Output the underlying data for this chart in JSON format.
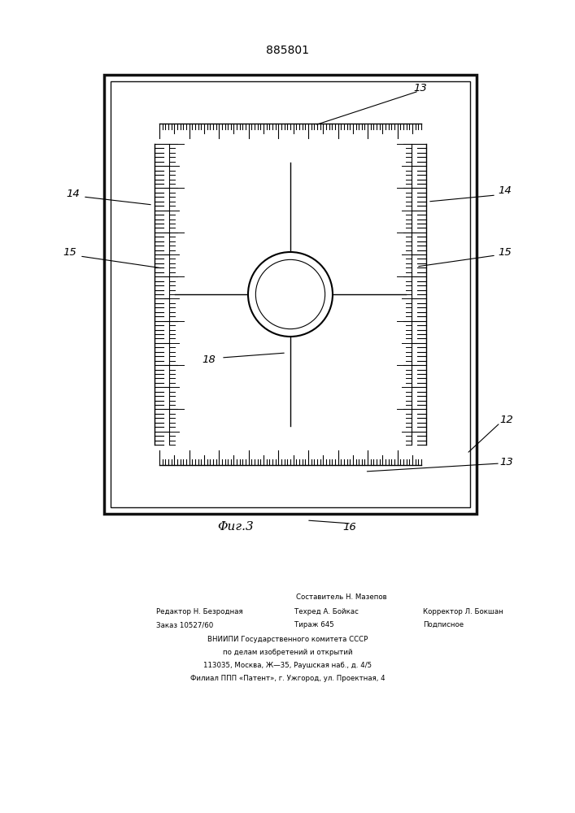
{
  "title": "885801",
  "fig_label": "Φиг.3",
  "bg_color": "#ffffff",
  "footer_lines": [
    "Составитель Н. Мазепов",
    "Редактор Н. Безродная",
    "Техред А. Бойкас",
    "Корректор Л. Бокшан",
    "Заказ 10527/60",
    "Тираж 645",
    "Подписное",
    "ВНИИПИ Государственного комитета СССР",
    "по делам изобретений и открытий",
    "113035, Москва, Ж—35, Раушская наб., д. 4/5",
    "Филиал ППП «Патент», г. Ужгород, ул. Проектная, 4"
  ]
}
